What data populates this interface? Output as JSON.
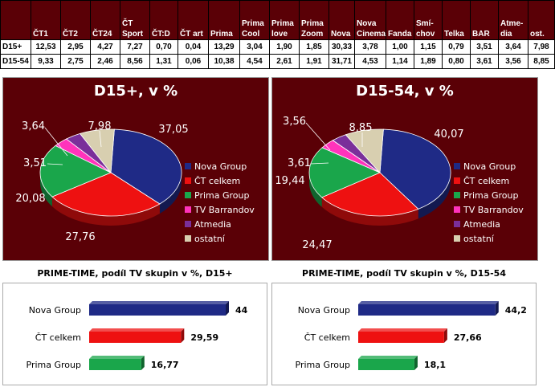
{
  "table": {
    "columns": [
      "ČT1",
      "ČT2",
      "ČT24",
      "ČT Sport",
      "ČT:D",
      "ČT art",
      "Prima",
      "Prima Cool",
      "Prima love",
      "Prima Zoom",
      "Nova",
      "Nova Cinema",
      "Fanda",
      "Smí-chov",
      "Telka",
      "BAR",
      "Atme-dia",
      "ost."
    ],
    "rows": [
      {
        "label": "D15+",
        "values": [
          "12,53",
          "2,95",
          "4,27",
          "7,27",
          "0,70",
          "0,04",
          "13,29",
          "3,04",
          "1,90",
          "1,85",
          "30,33",
          "3,78",
          "1,00",
          "1,15",
          "0,79",
          "3,51",
          "3,64",
          "7,98"
        ]
      },
      {
        "label": "D15-54",
        "values": [
          "9,33",
          "2,75",
          "2,46",
          "8,56",
          "1,31",
          "0,06",
          "10,38",
          "4,54",
          "2,61",
          "1,91",
          "31,71",
          "4,53",
          "1,14",
          "1,89",
          "0,80",
          "3,61",
          "3,56",
          "8,85"
        ]
      }
    ]
  },
  "colors": {
    "nova": "#1f2a86",
    "ct": "#ee1111",
    "prima": "#1aa64b",
    "barrandov": "#ff33bb",
    "atmedia": "#7a2f9a",
    "ostatni": "#d8cfb0",
    "panel_bg": "#5a0006"
  },
  "chart_data": [
    {
      "type": "pie",
      "title": "D15+, v %",
      "categories": [
        "Nova Group",
        "ČT celkem",
        "Prima Group",
        "TV Barrandov",
        "Atmedia",
        "ostatní"
      ],
      "values": [
        37.05,
        27.76,
        20.08,
        3.51,
        3.64,
        7.98
      ],
      "labels": [
        "37,05",
        "27,76",
        "20,08",
        "3,51",
        "3,64",
        "7,98"
      ],
      "legend": "right"
    },
    {
      "type": "pie",
      "title": "D15-54, v %",
      "categories": [
        "Nova Group",
        "ČT celkem",
        "Prima Group",
        "TV Barrandov",
        "Atmedia",
        "ostatní"
      ],
      "values": [
        40.07,
        24.47,
        19.44,
        3.61,
        3.56,
        8.85
      ],
      "labels": [
        "40,07",
        "24,47",
        "19,44",
        "3,61",
        "3,56",
        "8,85"
      ],
      "legend": "right"
    },
    {
      "type": "bar",
      "orientation": "horizontal",
      "title": "PRIME-TIME, podíl TV skupin v %, D15+",
      "categories": [
        "Nova Group",
        "ČT celkem",
        "Prima Group"
      ],
      "values": [
        44,
        29.59,
        16.77
      ],
      "labels": [
        "44",
        "29,59",
        "16,77"
      ],
      "xlim": [
        0,
        70
      ]
    },
    {
      "type": "bar",
      "orientation": "horizontal",
      "title": "PRIME-TIME, podíl TV skupin v %, D15-54",
      "categories": [
        "Nova Group",
        "ČT celkem",
        "Prima Group"
      ],
      "values": [
        44.2,
        27.66,
        18.1
      ],
      "labels": [
        "44,2",
        "27,66",
        "18,1"
      ],
      "xlim": [
        0,
        70
      ]
    }
  ]
}
